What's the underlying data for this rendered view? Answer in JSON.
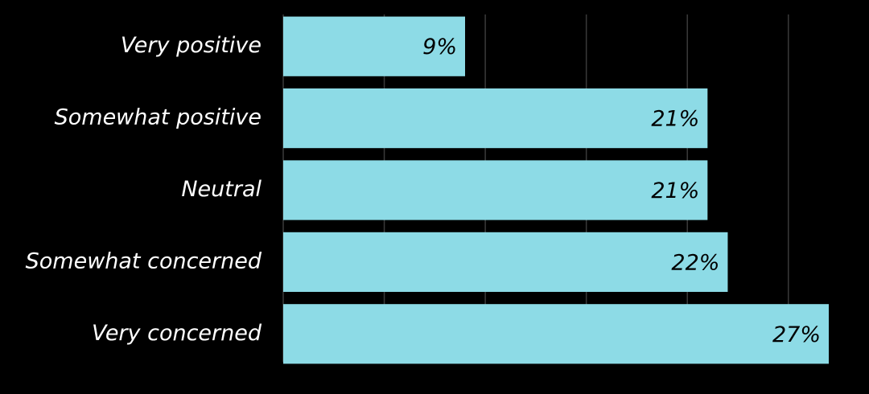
{
  "chart_data": {
    "type": "bar",
    "orientation": "horizontal",
    "categories": [
      "Very positive",
      "Somewhat positive",
      "Neutral",
      "Somewhat concerned",
      "Very concerned"
    ],
    "values": [
      9,
      21,
      21,
      22,
      27
    ],
    "value_labels": [
      "9%",
      "21%",
      "21%",
      "22%",
      "27%"
    ],
    "color": "#8ddbe6",
    "xlim": [
      0,
      27
    ],
    "xticks": [
      0,
      5,
      10,
      15,
      20,
      25
    ],
    "grid": true
  }
}
